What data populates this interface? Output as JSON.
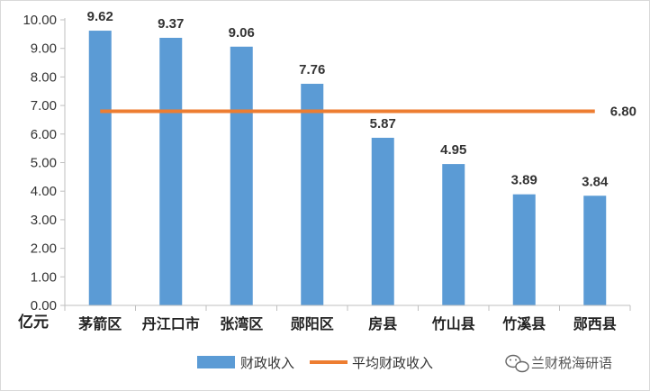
{
  "chart_data": {
    "type": "bar",
    "y_unit": "亿元",
    "ylim": [
      0,
      10
    ],
    "y_ticks": [
      "0.00",
      "1.00",
      "2.00",
      "3.00",
      "4.00",
      "5.00",
      "6.00",
      "7.00",
      "8.00",
      "9.00",
      "10.00"
    ],
    "categories": [
      "茅箭区",
      "丹江口市",
      "张湾区",
      "郧阳区",
      "房县",
      "竹山县",
      "竹溪县",
      "郧西县"
    ],
    "series": [
      {
        "name": "财政收入",
        "type": "bar",
        "color": "#5b9bd5",
        "values": [
          9.62,
          9.37,
          9.06,
          7.76,
          5.87,
          4.95,
          3.89,
          3.84
        ],
        "labels": [
          "9.62",
          "9.37",
          "9.06",
          "7.76",
          "5.87",
          "4.95",
          "3.89",
          "3.84"
        ]
      },
      {
        "name": "平均财政收入",
        "type": "line",
        "color": "#ed7d31",
        "value": 6.8,
        "label": "6.80"
      }
    ],
    "grid": false,
    "legend_position": "bottom"
  },
  "watermark": {
    "text": "兰财税海研语",
    "icon": "wechat-icon"
  }
}
